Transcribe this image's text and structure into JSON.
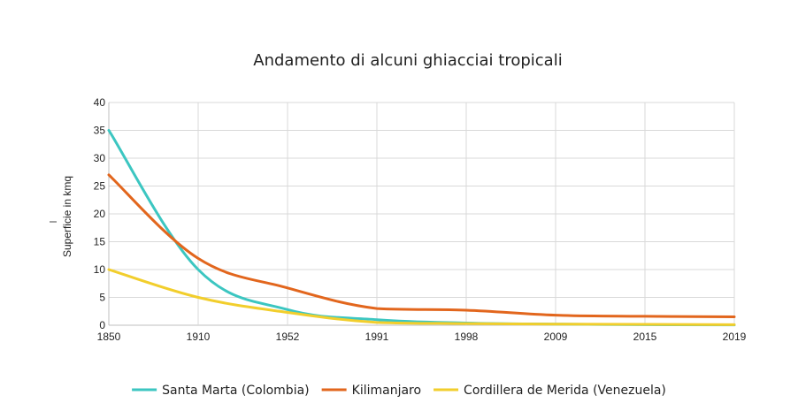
{
  "chart_data": {
    "type": "line",
    "title": "Andamento di alcuni ghiacciai tropicali",
    "xlabel": "",
    "ylabel": "Superficie in kmq",
    "categories": [
      "1850",
      "1910",
      "1952",
      "1991",
      "1998",
      "2009",
      "2015",
      "2019"
    ],
    "ylim": [
      0,
      40
    ],
    "yticks": [
      "0",
      "5",
      "10",
      "15",
      "20",
      "25",
      "30",
      "35",
      "40"
    ],
    "grid": true,
    "legend_position": "bottom",
    "series": [
      {
        "name": "Santa Marta (Colombia)",
        "color": "#3cc6c1",
        "values": [
          35,
          10,
          2.8,
          1,
          0.4,
          0.2,
          0.1,
          0.05
        ]
      },
      {
        "name": "Kilimanjaro",
        "color": "#e2661d",
        "values": [
          27,
          12,
          6.7,
          3,
          2.7,
          1.8,
          1.6,
          1.5
        ]
      },
      {
        "name": "Cordillera de Merida (Venezuela)",
        "color": "#f2ce2c",
        "values": [
          10,
          5,
          2.3,
          0.5,
          0.3,
          0.2,
          0.15,
          0.1
        ]
      }
    ]
  }
}
